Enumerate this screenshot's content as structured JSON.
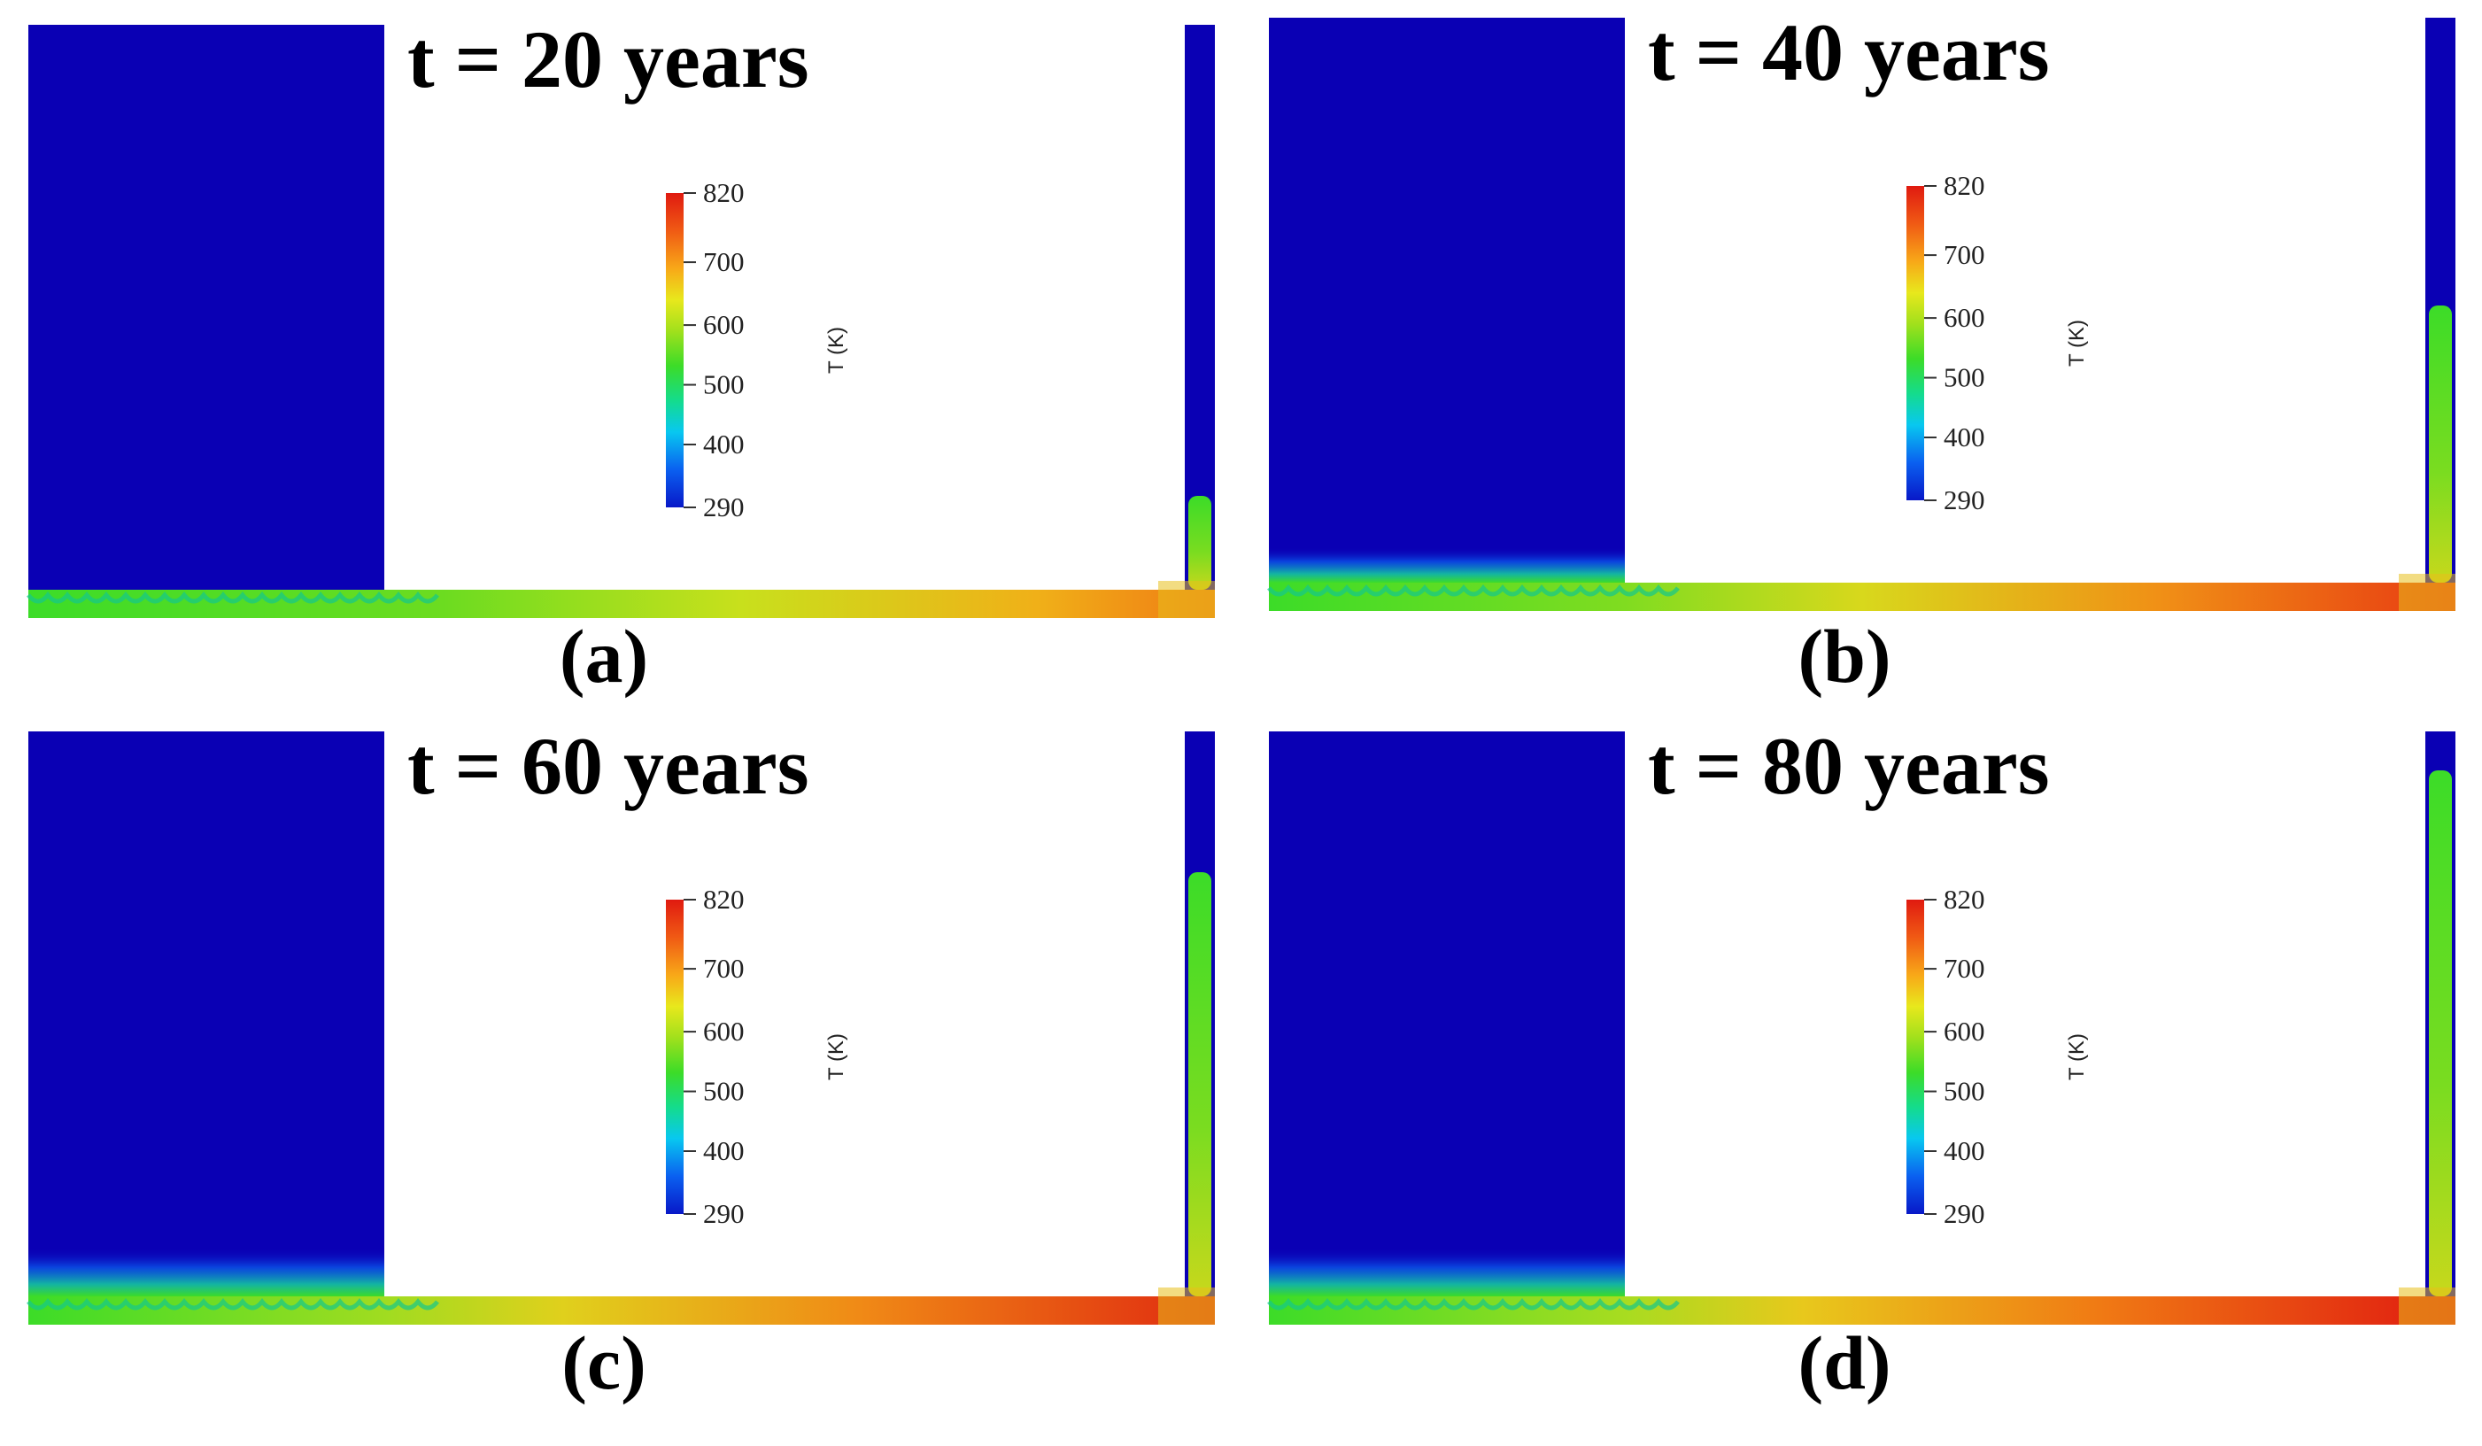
{
  "colors": {
    "cold": "#0a00b4",
    "colormap": [
      "#0818c8",
      "#0a60f0",
      "#08c8f0",
      "#14dc8c",
      "#3cdc28",
      "#a0e01c",
      "#e8e81c",
      "#f8a818",
      "#f05a14",
      "#e01a10"
    ]
  },
  "panels": [
    {
      "id": "a",
      "title": "t = 20 years",
      "caption": "(a)",
      "colorbar": {
        "label": "T (K)",
        "ticks": [
          "820",
          "700",
          "600",
          "500",
          "400",
          "290"
        ]
      }
    },
    {
      "id": "b",
      "title": "t = 40 years",
      "caption": "(b)",
      "colorbar": {
        "label": "T (K)",
        "ticks": [
          "820",
          "700",
          "600",
          "500",
          "400",
          "290"
        ]
      }
    },
    {
      "id": "c",
      "title": "t = 60 years",
      "caption": "(c)",
      "colorbar": {
        "label": "T (K)",
        "ticks": [
          "820",
          "700",
          "600",
          "500",
          "400",
          "290"
        ]
      }
    },
    {
      "id": "d",
      "title": "t = 80 years",
      "caption": "(d)",
      "colorbar": {
        "label": "T (K)",
        "ticks": [
          "820",
          "700",
          "600",
          "500",
          "400",
          "290"
        ]
      }
    }
  ]
}
